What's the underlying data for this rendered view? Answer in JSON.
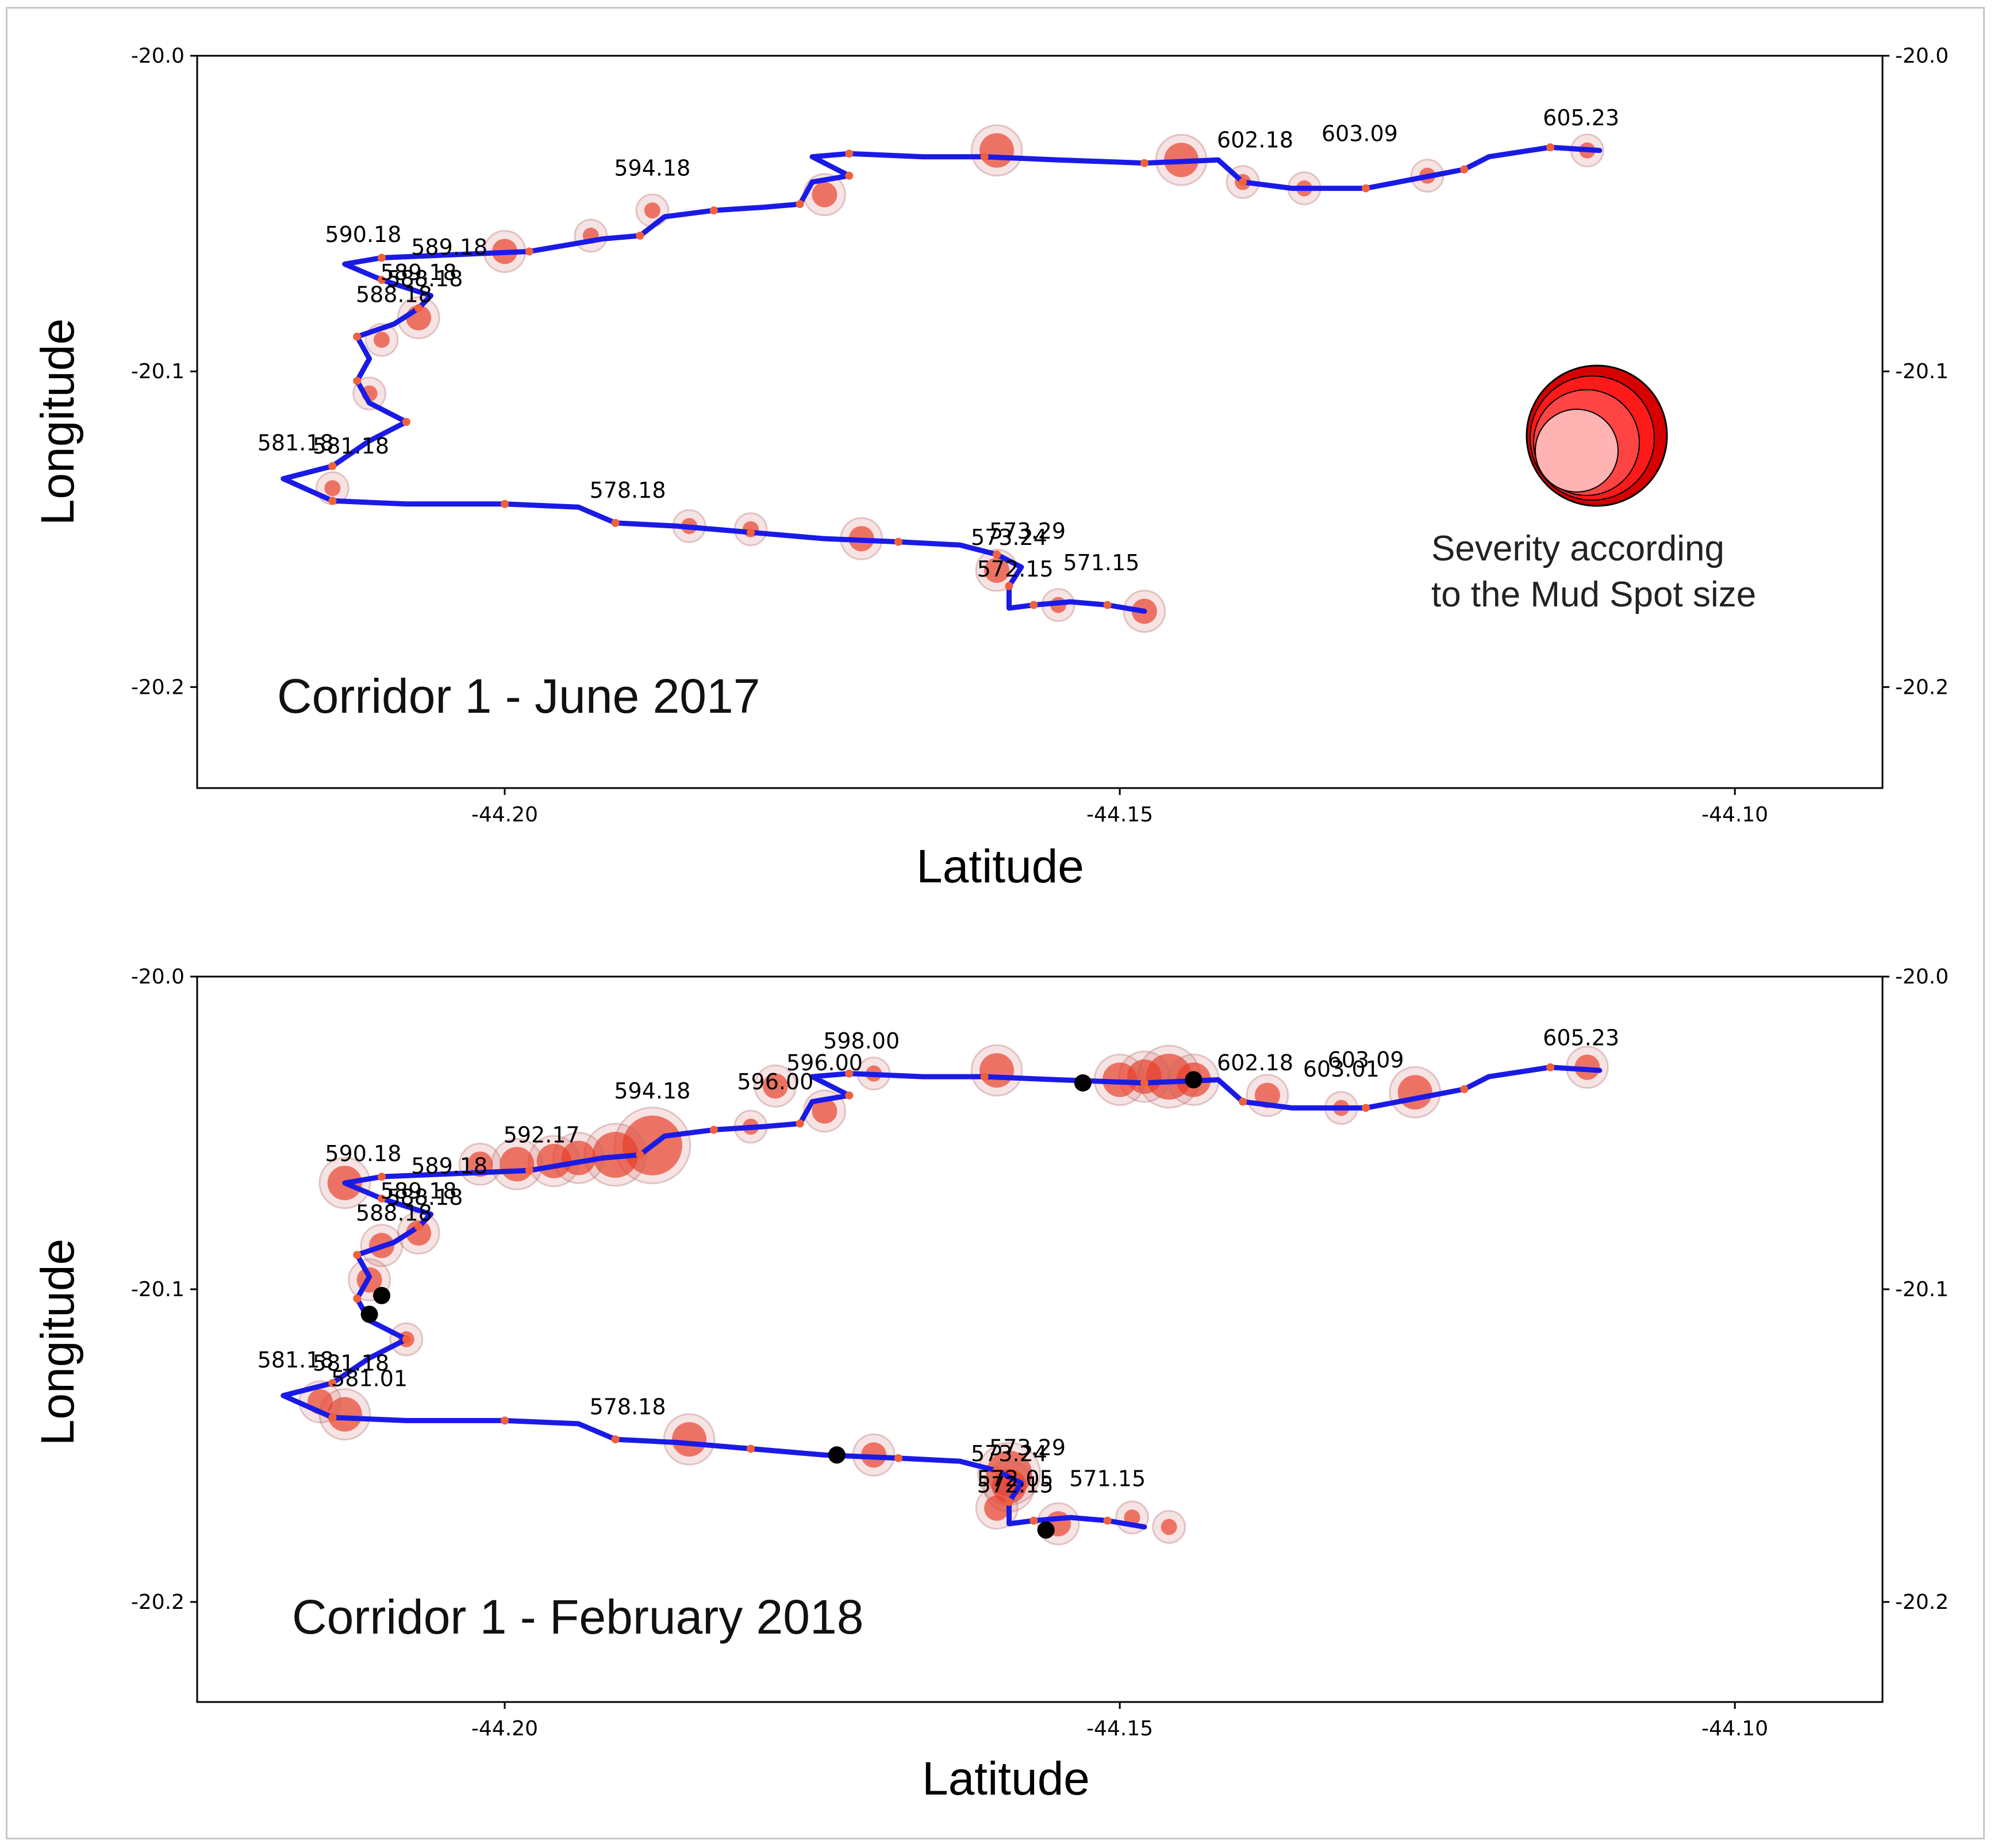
{
  "chart_data": [
    {
      "type": "scatter",
      "title": "Corridor 1 -  June 2017",
      "xlabel": "Latitude",
      "ylabel": "Longitude",
      "xlim": [
        -44.225,
        -44.088
      ],
      "ylim": [
        -20.232,
        -20.0
      ],
      "xticks": [
        "-44.20",
        "-44.15",
        "-44.10"
      ],
      "yticks": [
        "-20.0",
        "-20.1",
        "-20.2"
      ],
      "legend_text": [
        "Severity according",
        "to the Mud Spot size"
      ],
      "route": [
        [
          -44.148,
          -20.176
        ],
        [
          -44.151,
          -20.174
        ],
        [
          -44.154,
          -20.173
        ],
        [
          -44.157,
          -20.174
        ],
        [
          -44.159,
          -20.175
        ],
        [
          -44.159,
          -20.168
        ],
        [
          -44.158,
          -20.162
        ],
        [
          -44.16,
          -20.158
        ],
        [
          -44.163,
          -20.155
        ],
        [
          -44.168,
          -20.154
        ],
        [
          -44.174,
          -20.153
        ],
        [
          -44.18,
          -20.151
        ],
        [
          -44.186,
          -20.149
        ],
        [
          -44.191,
          -20.148
        ],
        [
          -44.194,
          -20.143
        ],
        [
          -44.2,
          -20.142
        ],
        [
          -44.208,
          -20.142
        ],
        [
          -44.214,
          -20.141
        ],
        [
          -44.218,
          -20.134
        ],
        [
          -44.214,
          -20.13
        ],
        [
          -44.211,
          -20.122
        ],
        [
          -44.208,
          -20.116
        ],
        [
          -44.211,
          -20.11
        ],
        [
          -44.212,
          -20.103
        ],
        [
          -44.211,
          -20.096
        ],
        [
          -44.212,
          -20.089
        ],
        [
          -44.209,
          -20.085
        ],
        [
          -44.207,
          -20.08
        ],
        [
          -44.206,
          -20.076
        ],
        [
          -44.21,
          -20.071
        ],
        [
          -44.213,
          -20.066
        ],
        [
          -44.21,
          -20.064
        ],
        [
          -44.204,
          -20.063
        ],
        [
          -44.198,
          -20.062
        ],
        [
          -44.192,
          -20.058
        ],
        [
          -44.189,
          -20.057
        ],
        [
          -44.187,
          -20.051
        ],
        [
          -44.183,
          -20.049
        ],
        [
          -44.179,
          -20.048
        ],
        [
          -44.176,
          -20.047
        ],
        [
          -44.175,
          -20.04
        ],
        [
          -44.172,
          -20.038
        ],
        [
          -44.175,
          -20.032
        ],
        [
          -44.172,
          -20.031
        ],
        [
          -44.166,
          -20.032
        ],
        [
          -44.161,
          -20.032
        ],
        [
          -44.155,
          -20.033
        ],
        [
          -44.148,
          -20.034
        ],
        [
          -44.142,
          -20.033
        ],
        [
          -44.14,
          -20.04
        ],
        [
          -44.136,
          -20.042
        ],
        [
          -44.13,
          -20.042
        ],
        [
          -44.126,
          -20.039
        ],
        [
          -44.122,
          -20.036
        ],
        [
          -44.12,
          -20.032
        ],
        [
          -44.115,
          -20.029
        ],
        [
          -44.111,
          -20.03
        ]
      ],
      "labels": [
        {
          "text": "605.23",
          "x": -44.1125,
          "y": -20.022
        },
        {
          "text": "603.09",
          "x": -44.1305,
          "y": -20.027
        },
        {
          "text": "602.18",
          "x": -44.139,
          "y": -20.029
        },
        {
          "text": "594.18",
          "x": -44.188,
          "y": -20.038
        },
        {
          "text": "590.18",
          "x": -44.2115,
          "y": -20.059
        },
        {
          "text": "589.18",
          "x": -44.2045,
          "y": -20.063
        },
        {
          "text": "589.18",
          "x": -44.207,
          "y": -20.071
        },
        {
          "text": "588.18",
          "x": -44.2065,
          "y": -20.073
        },
        {
          "text": "588.18",
          "x": -44.209,
          "y": -20.078
        },
        {
          "text": "581.18",
          "x": -44.217,
          "y": -20.125
        },
        {
          "text": "581.18",
          "x": -44.2125,
          "y": -20.126
        },
        {
          "text": "578.18",
          "x": -44.19,
          "y": -20.14
        },
        {
          "text": "573.29",
          "x": -44.1575,
          "y": -20.153
        },
        {
          "text": "573.24",
          "x": -44.159,
          "y": -20.155
        },
        {
          "text": "572.15",
          "x": -44.1585,
          "y": -20.165
        },
        {
          "text": "571.15",
          "x": -44.1515,
          "y": -20.163
        }
      ],
      "spots": [
        [
          -44.16,
          -20.03,
          3
        ],
        [
          -44.145,
          -20.033,
          3
        ],
        [
          -44.148,
          -20.176,
          2
        ],
        [
          -44.171,
          -20.153,
          2
        ],
        [
          -44.16,
          -20.163,
          2
        ],
        [
          -44.2,
          -20.062,
          2
        ],
        [
          -44.211,
          -20.107,
          1
        ],
        [
          -44.174,
          -20.044,
          2
        ],
        [
          -44.14,
          -20.04,
          1
        ],
        [
          -44.125,
          -20.038,
          1
        ],
        [
          -44.112,
          -20.03,
          1
        ],
        [
          -44.188,
          -20.049,
          1
        ],
        [
          -44.21,
          -20.09,
          1
        ],
        [
          -44.207,
          -20.083,
          2
        ],
        [
          -44.185,
          -20.149,
          1
        ],
        [
          -44.18,
          -20.15,
          1
        ],
        [
          -44.214,
          -20.137,
          1
        ],
        [
          -44.155,
          -20.174,
          1
        ],
        [
          -44.135,
          -20.042,
          1
        ],
        [
          -44.193,
          -20.057,
          1
        ]
      ],
      "black_markers": []
    },
    {
      "type": "scatter",
      "title": "Corridor 1 - February 2018",
      "xlabel": "Latitude",
      "ylabel": "Longitude",
      "xlim": [
        -44.225,
        -44.088
      ],
      "ylim": [
        -20.232,
        -20.0
      ],
      "xticks": [
        "-44.20",
        "-44.15",
        "-44.10"
      ],
      "yticks": [
        "-20.0",
        "-20.1",
        "-20.2"
      ],
      "route": [
        [
          -44.148,
          -20.176
        ],
        [
          -44.151,
          -20.174
        ],
        [
          -44.154,
          -20.173
        ],
        [
          -44.157,
          -20.174
        ],
        [
          -44.159,
          -20.175
        ],
        [
          -44.159,
          -20.168
        ],
        [
          -44.158,
          -20.162
        ],
        [
          -44.16,
          -20.158
        ],
        [
          -44.163,
          -20.155
        ],
        [
          -44.168,
          -20.154
        ],
        [
          -44.174,
          -20.153
        ],
        [
          -44.18,
          -20.151
        ],
        [
          -44.186,
          -20.149
        ],
        [
          -44.191,
          -20.148
        ],
        [
          -44.194,
          -20.143
        ],
        [
          -44.2,
          -20.142
        ],
        [
          -44.208,
          -20.142
        ],
        [
          -44.214,
          -20.141
        ],
        [
          -44.218,
          -20.134
        ],
        [
          -44.214,
          -20.13
        ],
        [
          -44.211,
          -20.122
        ],
        [
          -44.208,
          -20.116
        ],
        [
          -44.211,
          -20.11
        ],
        [
          -44.212,
          -20.103
        ],
        [
          -44.211,
          -20.096
        ],
        [
          -44.212,
          -20.089
        ],
        [
          -44.209,
          -20.085
        ],
        [
          -44.207,
          -20.08
        ],
        [
          -44.206,
          -20.076
        ],
        [
          -44.21,
          -20.071
        ],
        [
          -44.213,
          -20.066
        ],
        [
          -44.21,
          -20.064
        ],
        [
          -44.204,
          -20.063
        ],
        [
          -44.198,
          -20.062
        ],
        [
          -44.192,
          -20.058
        ],
        [
          -44.189,
          -20.057
        ],
        [
          -44.187,
          -20.051
        ],
        [
          -44.183,
          -20.049
        ],
        [
          -44.179,
          -20.048
        ],
        [
          -44.176,
          -20.047
        ],
        [
          -44.175,
          -20.04
        ],
        [
          -44.172,
          -20.038
        ],
        [
          -44.175,
          -20.032
        ],
        [
          -44.172,
          -20.031
        ],
        [
          -44.166,
          -20.032
        ],
        [
          -44.161,
          -20.032
        ],
        [
          -44.155,
          -20.033
        ],
        [
          -44.148,
          -20.034
        ],
        [
          -44.142,
          -20.033
        ],
        [
          -44.14,
          -20.04
        ],
        [
          -44.136,
          -20.042
        ],
        [
          -44.13,
          -20.042
        ],
        [
          -44.126,
          -20.039
        ],
        [
          -44.122,
          -20.036
        ],
        [
          -44.12,
          -20.032
        ],
        [
          -44.115,
          -20.029
        ],
        [
          -44.111,
          -20.03
        ]
      ],
      "labels": [
        {
          "text": "605.23",
          "x": -44.1125,
          "y": -20.022
        },
        {
          "text": "603.09",
          "x": -44.13,
          "y": -20.029
        },
        {
          "text": "603.01",
          "x": -44.132,
          "y": -20.032
        },
        {
          "text": "602.18",
          "x": -44.139,
          "y": -20.03
        },
        {
          "text": "598.00",
          "x": -44.171,
          "y": -20.023
        },
        {
          "text": "596.00",
          "x": -44.174,
          "y": -20.03
        },
        {
          "text": "596.00",
          "x": -44.178,
          "y": -20.036
        },
        {
          "text": "594.18",
          "x": -44.188,
          "y": -20.039
        },
        {
          "text": "592.17",
          "x": -44.197,
          "y": -20.053
        },
        {
          "text": "590.18",
          "x": -44.2115,
          "y": -20.059
        },
        {
          "text": "589.18",
          "x": -44.2045,
          "y": -20.063
        },
        {
          "text": "589.18",
          "x": -44.207,
          "y": -20.071
        },
        {
          "text": "588.18",
          "x": -44.2065,
          "y": -20.073
        },
        {
          "text": "588.18",
          "x": -44.209,
          "y": -20.078
        },
        {
          "text": "581.18",
          "x": -44.217,
          "y": -20.125
        },
        {
          "text": "581.18",
          "x": -44.2125,
          "y": -20.126
        },
        {
          "text": "581.01",
          "x": -44.211,
          "y": -20.131
        },
        {
          "text": "578.18",
          "x": -44.19,
          "y": -20.14
        },
        {
          "text": "573.29",
          "x": -44.1575,
          "y": -20.153
        },
        {
          "text": "573.24",
          "x": -44.159,
          "y": -20.155
        },
        {
          "text": "572.05",
          "x": -44.1585,
          "y": -20.163
        },
        {
          "text": "572.15",
          "x": -44.1585,
          "y": -20.165
        },
        {
          "text": "571.15",
          "x": -44.151,
          "y": -20.163
        }
      ],
      "spots": [
        [
          -44.188,
          -20.054,
          5
        ],
        [
          -44.191,
          -20.057,
          4
        ],
        [
          -44.194,
          -20.058,
          3
        ],
        [
          -44.196,
          -20.059,
          3
        ],
        [
          -44.199,
          -20.06,
          3
        ],
        [
          -44.202,
          -20.06,
          2
        ],
        [
          -44.146,
          -20.032,
          4
        ],
        [
          -44.148,
          -20.032,
          3
        ],
        [
          -44.15,
          -20.033,
          3
        ],
        [
          -44.144,
          -20.033,
          3
        ],
        [
          -44.16,
          -20.03,
          3
        ],
        [
          -44.138,
          -20.038,
          2
        ],
        [
          -44.126,
          -20.037,
          3
        ],
        [
          -44.213,
          -20.066,
          3
        ],
        [
          -44.207,
          -20.082,
          2
        ],
        [
          -44.21,
          -20.086,
          2
        ],
        [
          -44.211,
          -20.097,
          2
        ],
        [
          -44.213,
          -20.14,
          3
        ],
        [
          -44.215,
          -20.136,
          2
        ],
        [
          -44.185,
          -20.148,
          3
        ],
        [
          -44.159,
          -20.159,
          4
        ],
        [
          -44.159,
          -20.163,
          3
        ],
        [
          -44.16,
          -20.17,
          2
        ],
        [
          -44.155,
          -20.175,
          2
        ],
        [
          -44.174,
          -20.043,
          2
        ],
        [
          -44.178,
          -20.035,
          2
        ],
        [
          -44.17,
          -20.031,
          1
        ],
        [
          -44.17,
          -20.153,
          2
        ],
        [
          -44.112,
          -20.029,
          2
        ],
        [
          -44.132,
          -20.042,
          1
        ],
        [
          -44.18,
          -20.048,
          1
        ],
        [
          -44.149,
          -20.173,
          1
        ],
        [
          -44.208,
          -20.116,
          1
        ],
        [
          -44.146,
          -20.176,
          1
        ]
      ],
      "black_markers": [
        [
          -44.153,
          -20.034
        ],
        [
          -44.144,
          -20.033
        ],
        [
          -44.21,
          -20.102
        ],
        [
          -44.211,
          -20.108
        ],
        [
          -44.173,
          -20.153
        ],
        [
          -44.156,
          -20.177
        ]
      ]
    }
  ]
}
